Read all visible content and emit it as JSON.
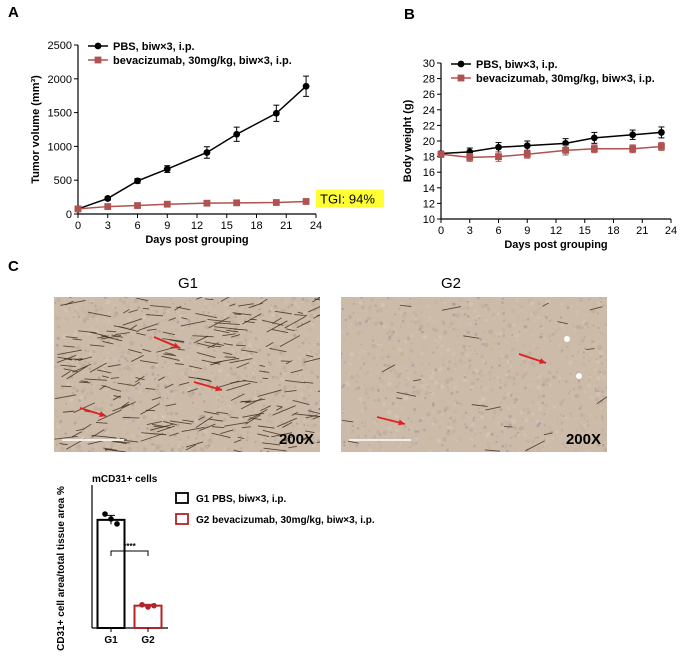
{
  "panels": {
    "a": "A",
    "b": "B",
    "c": "C"
  },
  "chart_data": [
    {
      "type": "line",
      "panel": "A",
      "xlabel": "Days post grouping",
      "ylabel": "Tumor volume (mm³)",
      "xlim": [
        0,
        24
      ],
      "ylim": [
        0,
        2500
      ],
      "xticks": [
        0,
        3,
        6,
        9,
        12,
        15,
        18,
        21,
        24
      ],
      "yticks": [
        0,
        500,
        1000,
        1500,
        2000,
        2500
      ],
      "legend_position": "top-left",
      "series": [
        {
          "name": "PBS, biw×3, i.p.",
          "name_bold": "PBS",
          "name_rest": ", biw×3, i.p.",
          "color": "#000000",
          "marker": "circle",
          "x": [
            0,
            3,
            6,
            9,
            13,
            16,
            20,
            23
          ],
          "y": [
            75,
            230,
            490,
            665,
            910,
            1180,
            1490,
            1890
          ],
          "err": [
            15,
            25,
            35,
            50,
            85,
            105,
            120,
            150
          ]
        },
        {
          "name": "bevacizumab, 30mg/kg, biw×3, i.p.",
          "name_bold": "",
          "name_rest": "bevacizumab, 30mg/kg, biw×3, i.p.",
          "color": "#b0524f",
          "marker": "square",
          "x": [
            0,
            3,
            6,
            9,
            13,
            16,
            20,
            23
          ],
          "y": [
            75,
            110,
            125,
            145,
            160,
            165,
            170,
            185
          ],
          "err": [
            10,
            12,
            15,
            15,
            18,
            20,
            22,
            25
          ]
        }
      ],
      "annotation": {
        "text": "TGI: 94%",
        "highlight": "#ffff33"
      }
    },
    {
      "type": "line",
      "panel": "B",
      "xlabel": "Days post grouping",
      "ylabel": "Body weight (g)",
      "xlim": [
        0,
        24
      ],
      "ylim": [
        10,
        30
      ],
      "xticks": [
        0,
        3,
        6,
        9,
        12,
        15,
        18,
        21,
        24
      ],
      "yticks": [
        10,
        12,
        14,
        16,
        18,
        20,
        22,
        24,
        26,
        28,
        30
      ],
      "legend_position": "top-left",
      "series": [
        {
          "name": "PBS, biw×3, i.p.",
          "name_bold": "PBS",
          "name_rest": ", biw×3, i.p.",
          "color": "#000000",
          "marker": "circle",
          "x": [
            0,
            3,
            6,
            9,
            13,
            16,
            20,
            23
          ],
          "y": [
            18.4,
            18.6,
            19.2,
            19.4,
            19.7,
            20.4,
            20.8,
            21.1
          ],
          "err": [
            0.3,
            0.5,
            0.6,
            0.6,
            0.6,
            0.7,
            0.6,
            0.7
          ]
        },
        {
          "name": "bevacizumab, 30mg/kg, biw×3, i.p.",
          "name_bold": "",
          "name_rest": "bevacizumab, 30mg/kg, biw×3, i.p.",
          "color": "#b0524f",
          "marker": "square",
          "x": [
            0,
            3,
            6,
            9,
            13,
            16,
            20,
            23
          ],
          "y": [
            18.3,
            17.9,
            18.0,
            18.3,
            18.8,
            19.0,
            19.0,
            19.3
          ],
          "err": [
            0.4,
            0.5,
            0.6,
            0.5,
            0.6,
            0.5,
            0.5,
            0.5
          ]
        }
      ]
    },
    {
      "type": "bar",
      "panel": "C",
      "title": "mCD31+ cells",
      "ylabel": "CD31+ cell area/total tissue area %",
      "categories": [
        "G1",
        "G2"
      ],
      "ylim": [
        0,
        3.2
      ],
      "values": [
        2.42,
        0.5
      ],
      "points": [
        [
          2.55,
          2.44,
          2.33
        ],
        [
          0.52,
          0.47,
          0.5
        ]
      ],
      "err": [
        0.1,
        0.03
      ],
      "colors": [
        "#000000",
        "#b0242a"
      ],
      "legend": [
        {
          "label": "G1 PBS, biw×3, i.p.",
          "color": "#000000"
        },
        {
          "label": "G2 bevacizumab, 30mg/kg, biw×3, i.p.",
          "color": "#b0242a"
        }
      ],
      "significance": "****"
    }
  ],
  "micrographs": [
    {
      "title": "G1",
      "magnification": "200X",
      "arrow_color": "#e02020",
      "vessel_color": "#3d2a1c"
    },
    {
      "title": "G2",
      "magnification": "200X",
      "arrow_color": "#e02020",
      "vessel_color": "#3d2a1c"
    }
  ]
}
